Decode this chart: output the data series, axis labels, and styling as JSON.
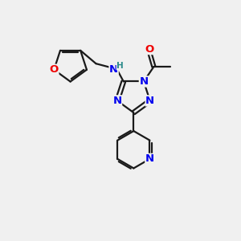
{
  "bg_color": "#f0f0f0",
  "bond_color": "#1a1a1a",
  "N_color": "#0000ee",
  "O_color": "#ee0000",
  "H_color": "#2a8a8a",
  "line_width": 1.6,
  "font_size_atom": 9.5,
  "fig_size": [
    3.0,
    3.0
  ],
  "dpi": 100,
  "xlim": [
    0,
    10
  ],
  "ylim": [
    0,
    10
  ]
}
